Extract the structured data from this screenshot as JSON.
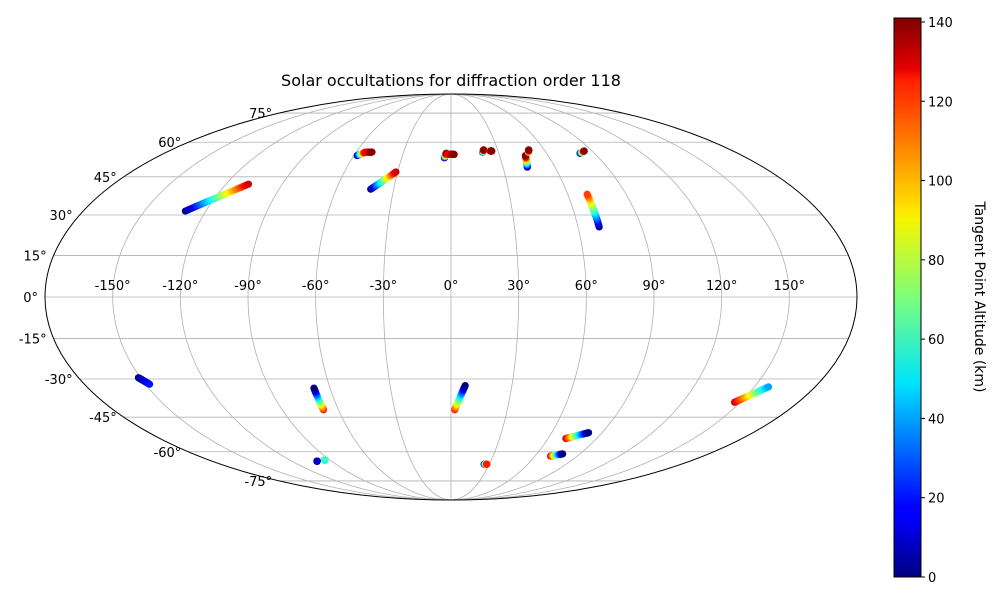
{
  "chart_data": {
    "type": "scatter",
    "projection": "mollweide",
    "title": "Solar occultations for diffraction order 118",
    "grid": true,
    "lon_ticks": [
      "-150°",
      "-120°",
      "-90°",
      "-60°",
      "-30°",
      "0°",
      "30°",
      "60°",
      "90°",
      "120°",
      "150°"
    ],
    "lat_ticks": [
      "75°",
      "60°",
      "45°",
      "30°",
      "15°",
      "0°",
      "-15°",
      "-30°",
      "-45°",
      "-60°",
      "-75°"
    ],
    "colorbar": {
      "label": "Tangent Point Altitude (km)",
      "colormap": "jet",
      "range": [
        0,
        141
      ],
      "ticks": [
        "0",
        "20",
        "40",
        "60",
        "80",
        "100",
        "120",
        "140"
      ]
    },
    "tracks": [
      {
        "lon": [
          -130,
          -108
        ],
        "lat": [
          31.5,
          42
        ],
        "alt": [
          0,
          130
        ]
      },
      {
        "lon": [
          -58,
          -54
        ],
        "lat": [
          54,
          55.5
        ],
        "alt": [
          0,
          140
        ]
      },
      {
        "lon": [
          -54,
          -50
        ],
        "lat": [
          55.5,
          55.5
        ],
        "alt": [
          120,
          140
        ]
      },
      {
        "lon": [
          -42,
          -31
        ],
        "lat": [
          40,
          47
        ],
        "alt": [
          0,
          130
        ]
      },
      {
        "lon": [
          -4,
          -3
        ],
        "lat": [
          53,
          55
        ],
        "alt": [
          0,
          140
        ]
      },
      {
        "lon": [
          -2,
          2
        ],
        "lat": [
          54.5,
          54.5
        ],
        "alt": [
          120,
          140
        ]
      },
      {
        "lon": [
          20,
          21
        ],
        "lat": [
          55.5,
          56.5
        ],
        "alt": [
          10,
          140
        ]
      },
      {
        "lon": [
          25,
          26
        ],
        "lat": [
          56,
          56
        ],
        "alt": [
          120,
          140
        ]
      },
      {
        "lon": [
          44,
          46
        ],
        "lat": [
          49,
          54
        ],
        "alt": [
          0,
          140
        ]
      },
      {
        "lon": [
          49,
          50
        ],
        "lat": [
          55.5,
          56.5
        ],
        "alt": [
          80,
          140
        ]
      },
      {
        "lon": [
          70,
          70
        ],
        "lat": [
          25.5,
          38
        ],
        "alt": [
          0,
          115
        ]
      },
      {
        "lon": [
          81,
          85
        ],
        "lat": [
          55,
          56
        ],
        "alt": [
          0,
          140
        ]
      },
      {
        "lon": [
          -151,
          -148
        ],
        "lat": [
          -29.5,
          -32
        ],
        "alt": [
          0,
          20
        ]
      },
      {
        "lon": [
          -101,
          -101
        ],
        "lat": [
          -64.5,
          -64.5
        ],
        "alt": [
          0,
          10
        ]
      },
      {
        "lon": [
          -94,
          -94
        ],
        "lat": [
          -64,
          -64
        ],
        "alt": [
          0,
          60
        ]
      },
      {
        "lon": [
          -68,
          -68
        ],
        "lat": [
          -42,
          -33.5
        ],
        "alt": [
          120,
          0
        ]
      },
      {
        "lon": [
          2,
          7
        ],
        "lat": [
          -42,
          -32.5
        ],
        "alt": [
          120,
          0
        ]
      },
      {
        "lon": [
          26,
          28
        ],
        "lat": [
          -66,
          -66
        ],
        "alt": [
          0,
          120
        ]
      },
      {
        "lon": [
          71,
          82
        ],
        "lat": [
          -54,
          -51.5
        ],
        "alt": [
          130,
          0
        ]
      },
      {
        "lon": [
          71,
          78
        ],
        "lat": [
          -62,
          -61
        ],
        "alt": [
          130,
          0
        ]
      },
      {
        "lon": [
          147,
          157
        ],
        "lat": [
          -39,
          -33
        ],
        "alt": [
          130,
          40
        ]
      }
    ]
  }
}
